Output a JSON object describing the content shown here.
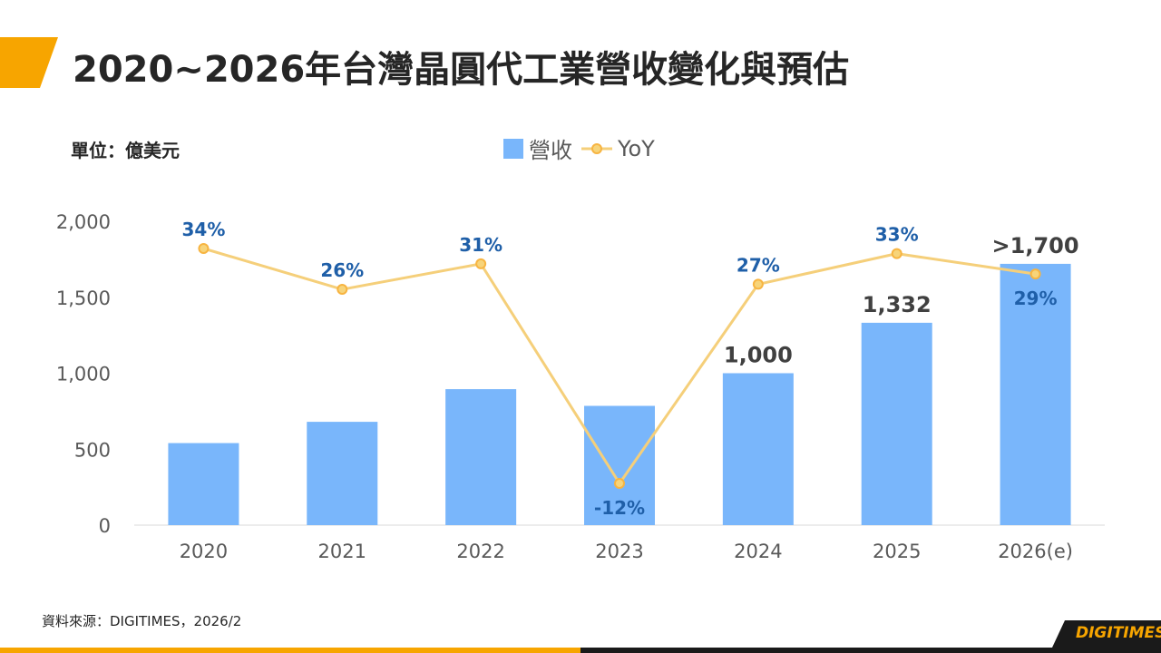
{
  "title": "2020~2026年台灣晶圓代工業營收變化與預估",
  "unit_label": "單位：億美元",
  "source": "資料來源：DIGITIMES，2026/2",
  "brand": "DIGITIMES",
  "legend": {
    "bar": "營收",
    "line": "YoY"
  },
  "colors": {
    "accent": "#f7a500",
    "bar": "#79b6fb",
    "line": "#f5cf7a",
    "line_marker": "#f7b441",
    "yoy_label": "#1f5fa8",
    "value_label": "#404040"
  },
  "chart_data": {
    "type": "bar",
    "categories": [
      "2020",
      "2021",
      "2022",
      "2023",
      "2024",
      "2025",
      "2026(e)"
    ],
    "series": [
      {
        "name": "營收",
        "type": "bar",
        "values": [
          540,
          680,
          895,
          785,
          1000,
          1332,
          1720
        ]
      },
      {
        "name": "YoY",
        "type": "line",
        "values": [
          34,
          26,
          31,
          -12,
          27,
          33,
          29
        ]
      }
    ],
    "bar_value_labels": [
      "",
      "",
      "",
      "",
      "1,000",
      "1,332",
      ">1,700"
    ],
    "yoy_labels": [
      "34%",
      "26%",
      "31%",
      "-12%",
      "27%",
      "33%",
      "29%"
    ],
    "y_ticks": [
      "0",
      "500",
      "1,000",
      "1,500",
      "2,000"
    ],
    "ylim": [
      0,
      2000
    ],
    "grid": false,
    "legend_position": "top-center"
  }
}
